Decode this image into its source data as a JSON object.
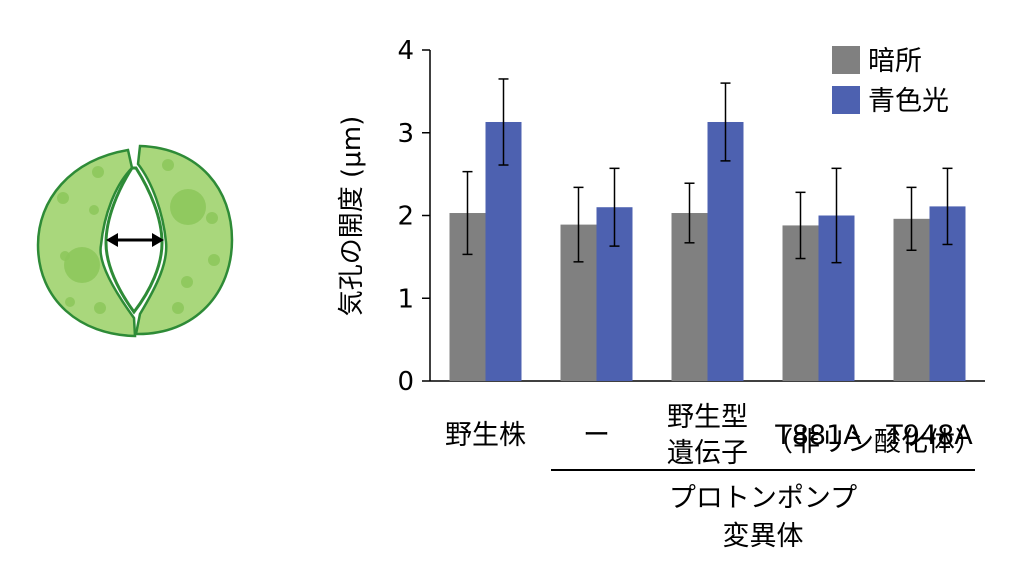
{
  "chart_data": {
    "type": "bar",
    "ylabel": "気孔の開度 (μm)",
    "ylim": [
      0,
      4
    ],
    "yticks": [
      0,
      1,
      2,
      3,
      4
    ],
    "grid": false,
    "legend_position": "top-right",
    "categories": [
      {
        "lines": [
          "野生株"
        ]
      },
      {
        "lines": [
          "ー"
        ]
      },
      {
        "lines": [
          "野生型",
          "遺伝子"
        ]
      },
      {
        "lines": [
          "T881A"
        ]
      },
      {
        "lines": [
          "T948A"
        ]
      }
    ],
    "group_annotation": {
      "text": "（非リン酸化体）",
      "spans": [
        3,
        4
      ]
    },
    "bracket": {
      "lines": [
        "プロトンポンプ",
        "変異体"
      ],
      "spans": [
        1,
        4
      ]
    },
    "series": [
      {
        "name": "暗所",
        "color": "#808080",
        "values": [
          2.03,
          1.89,
          2.03,
          1.88,
          1.96
        ],
        "errors": [
          0.5,
          0.45,
          0.36,
          0.4,
          0.38
        ]
      },
      {
        "name": "青色光",
        "color": "#4d61b0",
        "values": [
          3.13,
          2.1,
          3.13,
          2.0,
          2.11
        ],
        "errors": [
          0.52,
          0.47,
          0.47,
          0.57,
          0.46
        ]
      }
    ]
  },
  "illustration": {
    "name": "stomata-guard-cells",
    "fill_color": "#a9d77c",
    "outline_color": "#2e8b37",
    "arrow_color": "#000000"
  }
}
